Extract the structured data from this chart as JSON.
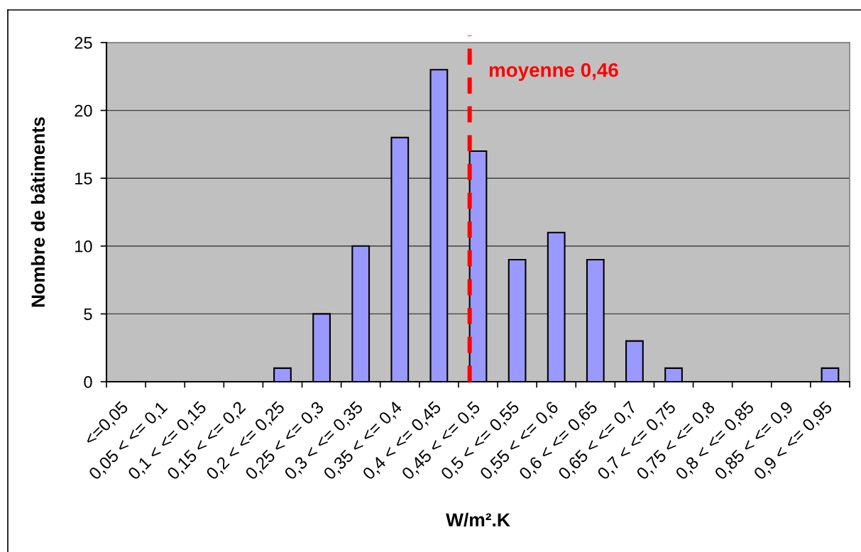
{
  "chart_data": {
    "type": "bar",
    "xlabel": "W/m².K",
    "ylabel": "Nombre de bâtiments",
    "categories": [
      "<=0,05",
      "0,05 < <= 0,1",
      "0,1 < <= 0,15",
      "0,15 < <= 0,2",
      "0,2 < <= 0,25",
      "0,25 < <= 0,3",
      "0,3 < <= 0,35",
      "0,35 < <= 0,4",
      "0,4 < <= 0,45",
      "0,45 < <= 0,5",
      "0,5 < <= 0,55",
      "0,55 < <= 0,6",
      "0,6 < <= 0,65",
      "0,65 < <= 0,7",
      "0,7 < <= 0,75",
      "0,75 < <= 0,8",
      "0,8 < <= 0,85",
      "0,85 < <= 0,9",
      "0,9 < <= 0,95"
    ],
    "values": [
      0,
      0,
      0,
      0,
      1,
      5,
      10,
      18,
      23,
      17,
      9,
      11,
      9,
      3,
      1,
      0,
      0,
      0,
      1
    ],
    "color": "#9999ff",
    "ylim": [
      0,
      25
    ],
    "yticks": [
      0,
      5,
      10,
      15,
      20,
      25
    ],
    "grid": "y",
    "ref_lines": [
      {
        "axis": "x",
        "value": "0,45 < <= 0,5",
        "label": "moyenne 0,46",
        "color": "#ff0000",
        "line_style": "dashed"
      }
    ]
  }
}
